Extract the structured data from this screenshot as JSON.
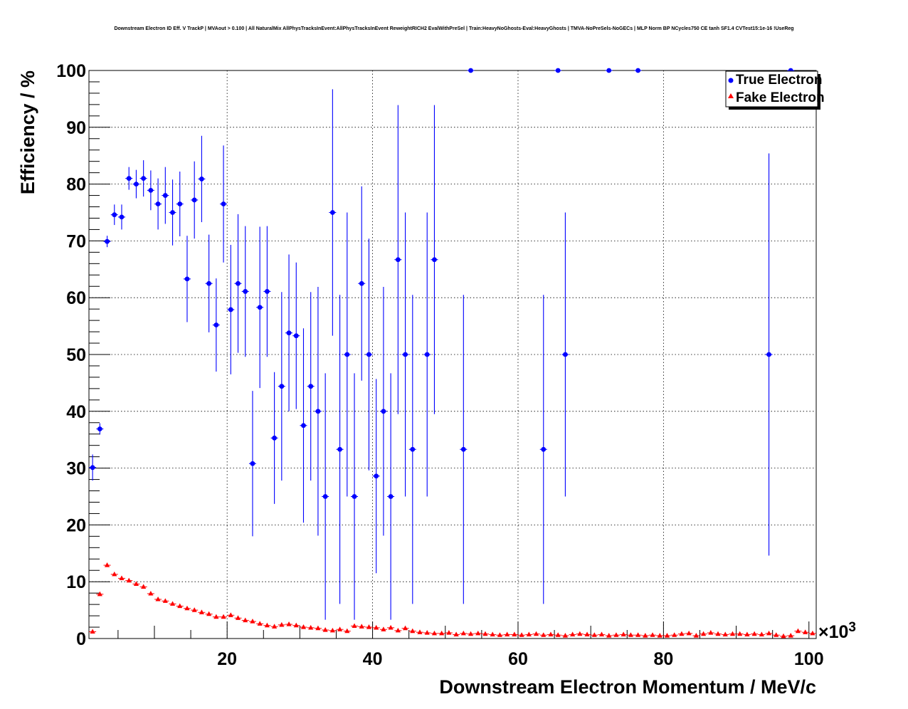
{
  "chart_data": {
    "type": "scatter",
    "title": "Downstream Electron ID Eff. V TrackP | MVAout > 0.100 | All NaturalMix AllPhysTracksInEvent:AllPhysTracksInEvent ReweightRICH2 EvalWithPreSel | Train:HeavyNoGhosts-Eval:HeavyGhosts | TMVA-NoPreSels-NoGECs | MLP Norm BP NCycles750 CE tanh SF1.4 CVTest15:1e-16 !UseReg",
    "xlabel": "Downstream Electron Momentum / MeV/c",
    "ylabel": "Efficiency / %",
    "x_exponent_base": "×10",
    "x_exponent_power": "3",
    "xlim": [
      1,
      101
    ],
    "ylim": [
      0,
      100
    ],
    "x_tick_labels": [
      "20",
      "40",
      "60",
      "80",
      "100"
    ],
    "y_tick_labels": [
      "0",
      "10",
      "20",
      "30",
      "40",
      "50",
      "60",
      "70",
      "80",
      "90",
      "100"
    ],
    "grid": true,
    "legend_position": "top-right",
    "colors": {
      "true_electron": "#0000ff",
      "fake_electron": "#ff0000"
    },
    "series": [
      {
        "name": "True Electron",
        "marker": "circle",
        "points": [
          {
            "x": 1.5,
            "y": 30.1,
            "err": 2.3
          },
          {
            "x": 2.5,
            "y": 36.9,
            "err": 1.0
          },
          {
            "x": 3.5,
            "y": 69.9,
            "err": 1.0
          },
          {
            "x": 4.5,
            "y": 74.6,
            "err": 1.8
          },
          {
            "x": 5.5,
            "y": 74.2,
            "err": 2.2
          },
          {
            "x": 6.5,
            "y": 81.0,
            "err": 2.0
          },
          {
            "x": 7.5,
            "y": 80.0,
            "err": 2.5
          },
          {
            "x": 8.5,
            "y": 81.0,
            "err": 3.2
          },
          {
            "x": 9.5,
            "y": 78.9,
            "err": 3.5
          },
          {
            "x": 10.5,
            "y": 76.5,
            "err": 4.5
          },
          {
            "x": 11.5,
            "y": 78.0,
            "err": 5.0
          },
          {
            "x": 12.5,
            "y": 75.0,
            "err": 5.8
          },
          {
            "x": 13.5,
            "y": 76.5,
            "err": 5.7
          },
          {
            "x": 14.5,
            "y": 63.3,
            "err": 7.6
          },
          {
            "x": 15.5,
            "y": 77.2,
            "err": 6.8
          },
          {
            "x": 16.5,
            "y": 80.9,
            "err": 7.6
          },
          {
            "x": 17.5,
            "y": 62.5,
            "err": 8.6
          },
          {
            "x": 18.5,
            "y": 55.2,
            "err": 8.2
          },
          {
            "x": 19.5,
            "y": 76.5,
            "err": 10.3
          },
          {
            "x": 20.5,
            "y": 57.9,
            "err": 11.4
          },
          {
            "x": 21.5,
            "y": 62.5,
            "err": 12.2
          },
          {
            "x": 22.5,
            "y": 61.1,
            "err": 11.5
          },
          {
            "x": 23.5,
            "y": 30.8,
            "err": 12.8
          },
          {
            "x": 24.5,
            "y": 58.3,
            "err": 14.2
          },
          {
            "x": 25.5,
            "y": 61.1,
            "err": 11.5
          },
          {
            "x": 26.5,
            "y": 35.3,
            "err": 11.6
          },
          {
            "x": 27.5,
            "y": 44.4,
            "err": 16.6
          },
          {
            "x": 28.5,
            "y": 53.8,
            "err": 13.8
          },
          {
            "x": 29.5,
            "y": 53.3,
            "err": 12.9
          },
          {
            "x": 30.5,
            "y": 37.5,
            "err": 17.1
          },
          {
            "x": 31.5,
            "y": 44.4,
            "err": 16.6
          },
          {
            "x": 32.5,
            "y": 40.0,
            "err": 21.9
          },
          {
            "x": 33.5,
            "y": 25.0,
            "err": 21.7
          },
          {
            "x": 34.5,
            "y": 75.0,
            "err": 21.7
          },
          {
            "x": 35.5,
            "y": 33.3,
            "err": 27.2
          },
          {
            "x": 36.5,
            "y": 50.0,
            "err": 25.0
          },
          {
            "x": 37.5,
            "y": 25.0,
            "err": 21.7
          },
          {
            "x": 38.5,
            "y": 62.5,
            "err": 17.1
          },
          {
            "x": 39.5,
            "y": 50.0,
            "err": 20.4
          },
          {
            "x": 40.5,
            "y": 28.6,
            "err": 17.1
          },
          {
            "x": 41.5,
            "y": 40.0,
            "err": 21.9
          },
          {
            "x": 42.5,
            "y": 25.0,
            "err": 21.7
          },
          {
            "x": 43.5,
            "y": 66.7,
            "err": 27.2
          },
          {
            "x": 44.5,
            "y": 50.0,
            "err": 25.0
          },
          {
            "x": 45.5,
            "y": 33.3,
            "err": 27.2
          },
          {
            "x": 47.5,
            "y": 50.0,
            "err": 25.0
          },
          {
            "x": 48.5,
            "y": 66.7,
            "err": 27.2
          },
          {
            "x": 52.5,
            "y": 33.3,
            "err": 27.2
          },
          {
            "x": 53.5,
            "y": 100.0,
            "err": 0
          },
          {
            "x": 63.5,
            "y": 33.3,
            "err": 27.2
          },
          {
            "x": 65.5,
            "y": 100.0,
            "err": 0
          },
          {
            "x": 66.5,
            "y": 50.0,
            "err": 25.0
          },
          {
            "x": 72.5,
            "y": 100.0,
            "err": 0
          },
          {
            "x": 76.5,
            "y": 100.0,
            "err": 0
          },
          {
            "x": 94.5,
            "y": 50.0,
            "err": 35.4
          },
          {
            "x": 97.5,
            "y": 100.0,
            "err": 0
          }
        ]
      },
      {
        "name": "Fake Electron",
        "marker": "triangle",
        "points": [
          {
            "x": 1.5,
            "y": 1.2
          },
          {
            "x": 2.5,
            "y": 7.8
          },
          {
            "x": 3.5,
            "y": 12.9
          },
          {
            "x": 4.5,
            "y": 11.3
          },
          {
            "x": 5.5,
            "y": 10.6
          },
          {
            "x": 6.5,
            "y": 10.2
          },
          {
            "x": 7.5,
            "y": 9.6
          },
          {
            "x": 8.5,
            "y": 9.1
          },
          {
            "x": 9.5,
            "y": 7.9
          },
          {
            "x": 10.5,
            "y": 6.9
          },
          {
            "x": 11.5,
            "y": 6.6
          },
          {
            "x": 12.5,
            "y": 6.1
          },
          {
            "x": 13.5,
            "y": 5.7
          },
          {
            "x": 14.5,
            "y": 5.3
          },
          {
            "x": 15.5,
            "y": 5.0
          },
          {
            "x": 16.5,
            "y": 4.6
          },
          {
            "x": 17.5,
            "y": 4.3
          },
          {
            "x": 18.5,
            "y": 3.8
          },
          {
            "x": 19.5,
            "y": 3.8
          },
          {
            "x": 20.5,
            "y": 4.1
          },
          {
            "x": 21.5,
            "y": 3.6
          },
          {
            "x": 22.5,
            "y": 3.2
          },
          {
            "x": 23.5,
            "y": 3.0
          },
          {
            "x": 24.5,
            "y": 2.6
          },
          {
            "x": 25.5,
            "y": 2.3
          },
          {
            "x": 26.5,
            "y": 2.1
          },
          {
            "x": 27.5,
            "y": 2.4
          },
          {
            "x": 28.5,
            "y": 2.5
          },
          {
            "x": 29.5,
            "y": 2.3
          },
          {
            "x": 30.5,
            "y": 2.0
          },
          {
            "x": 31.5,
            "y": 1.9
          },
          {
            "x": 32.5,
            "y": 1.8
          },
          {
            "x": 33.5,
            "y": 1.5
          },
          {
            "x": 34.5,
            "y": 1.4
          },
          {
            "x": 35.5,
            "y": 1.6
          },
          {
            "x": 36.5,
            "y": 1.3
          },
          {
            "x": 37.5,
            "y": 2.2
          },
          {
            "x": 38.5,
            "y": 2.1
          },
          {
            "x": 39.5,
            "y": 2.0
          },
          {
            "x": 40.5,
            "y": 1.9
          },
          {
            "x": 41.5,
            "y": 1.6
          },
          {
            "x": 42.5,
            "y": 1.9
          },
          {
            "x": 43.5,
            "y": 1.4
          },
          {
            "x": 44.5,
            "y": 1.8
          },
          {
            "x": 45.5,
            "y": 1.3
          },
          {
            "x": 46.5,
            "y": 1.1
          },
          {
            "x": 47.5,
            "y": 1.0
          },
          {
            "x": 48.5,
            "y": 0.9
          },
          {
            "x": 49.5,
            "y": 0.9
          },
          {
            "x": 50.5,
            "y": 1.0
          },
          {
            "x": 51.5,
            "y": 0.7
          },
          {
            "x": 52.5,
            "y": 0.9
          },
          {
            "x": 53.5,
            "y": 0.8
          },
          {
            "x": 54.5,
            "y": 0.9
          },
          {
            "x": 55.5,
            "y": 0.8
          },
          {
            "x": 56.5,
            "y": 0.7
          },
          {
            "x": 57.5,
            "y": 0.6
          },
          {
            "x": 58.5,
            "y": 0.7
          },
          {
            "x": 59.5,
            "y": 0.7
          },
          {
            "x": 60.5,
            "y": 0.6
          },
          {
            "x": 61.5,
            "y": 0.7
          },
          {
            "x": 62.5,
            "y": 0.8
          },
          {
            "x": 63.5,
            "y": 0.6
          },
          {
            "x": 64.5,
            "y": 0.7
          },
          {
            "x": 65.5,
            "y": 0.6
          },
          {
            "x": 66.5,
            "y": 0.5
          },
          {
            "x": 67.5,
            "y": 0.7
          },
          {
            "x": 68.5,
            "y": 0.8
          },
          {
            "x": 69.5,
            "y": 0.7
          },
          {
            "x": 70.5,
            "y": 0.6
          },
          {
            "x": 71.5,
            "y": 0.7
          },
          {
            "x": 72.5,
            "y": 0.5
          },
          {
            "x": 73.5,
            "y": 0.6
          },
          {
            "x": 74.5,
            "y": 0.7
          },
          {
            "x": 75.5,
            "y": 0.6
          },
          {
            "x": 76.5,
            "y": 0.6
          },
          {
            "x": 77.5,
            "y": 0.5
          },
          {
            "x": 78.5,
            "y": 0.6
          },
          {
            "x": 79.5,
            "y": 0.5
          },
          {
            "x": 80.5,
            "y": 0.5
          },
          {
            "x": 81.5,
            "y": 0.6
          },
          {
            "x": 82.5,
            "y": 0.8
          },
          {
            "x": 83.5,
            "y": 0.9
          },
          {
            "x": 84.5,
            "y": 0.5
          },
          {
            "x": 85.5,
            "y": 0.8
          },
          {
            "x": 86.5,
            "y": 1.0
          },
          {
            "x": 87.5,
            "y": 0.8
          },
          {
            "x": 88.5,
            "y": 0.7
          },
          {
            "x": 89.5,
            "y": 0.8
          },
          {
            "x": 90.5,
            "y": 0.8
          },
          {
            "x": 91.5,
            "y": 0.7
          },
          {
            "x": 92.5,
            "y": 0.8
          },
          {
            "x": 93.5,
            "y": 0.7
          },
          {
            "x": 94.5,
            "y": 0.9
          },
          {
            "x": 95.5,
            "y": 0.6
          },
          {
            "x": 96.5,
            "y": 0.4
          },
          {
            "x": 97.5,
            "y": 0.5
          },
          {
            "x": 98.5,
            "y": 1.3
          },
          {
            "x": 99.5,
            "y": 1.1
          },
          {
            "x": 100.5,
            "y": 0.9
          }
        ]
      }
    ]
  }
}
